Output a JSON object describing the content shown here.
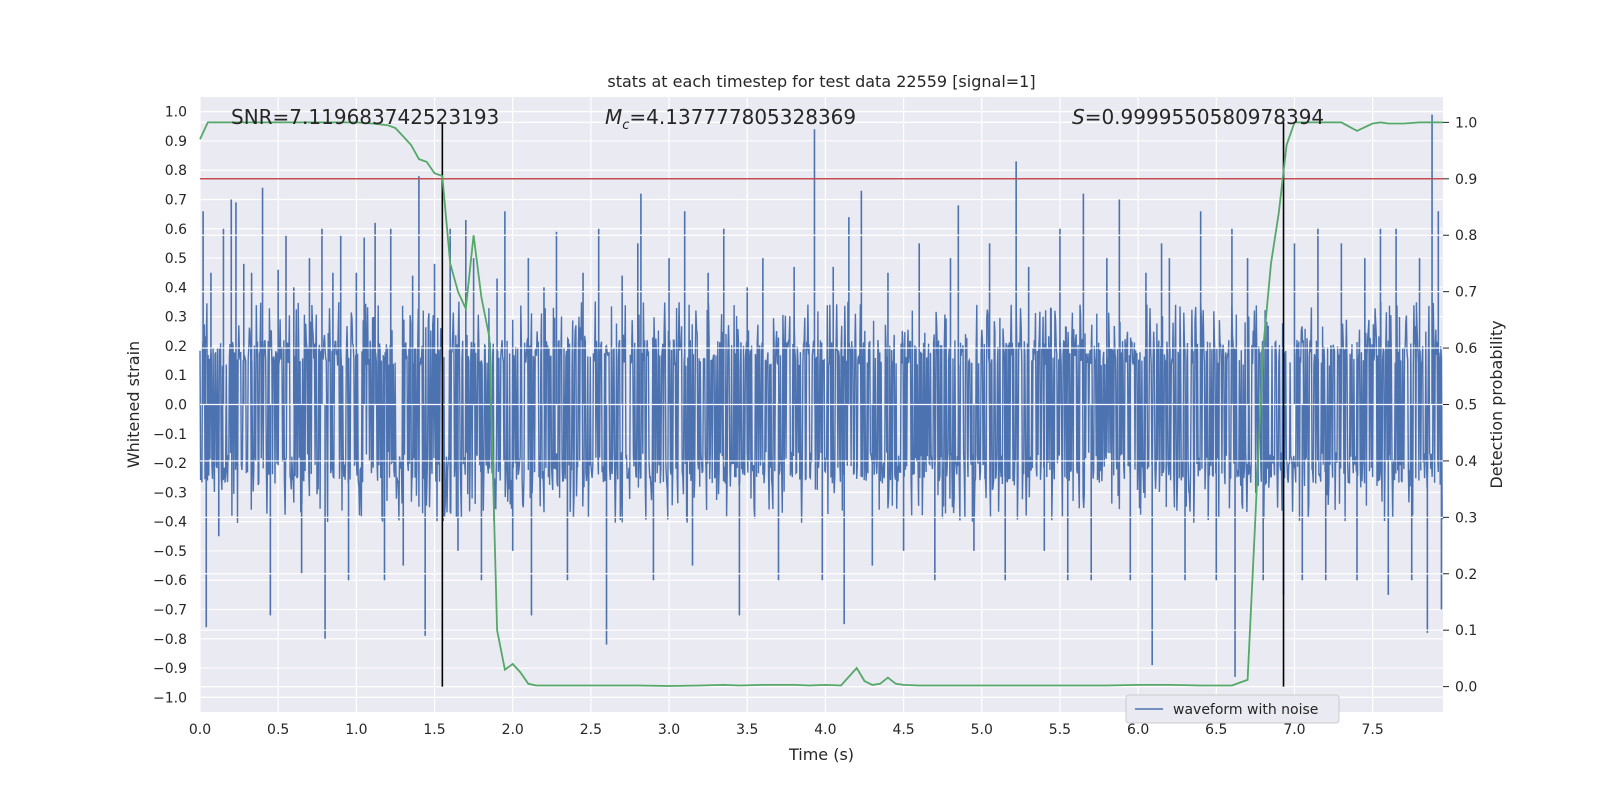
{
  "chart_data": {
    "type": "line",
    "title": "stats at each timestep for test data 22559 [signal=1]",
    "xlabel": "Time (s)",
    "ylabel_left": "Whitened strain",
    "ylabel_right": "Detection probability",
    "xlim": [
      0.0,
      7.95
    ],
    "ylim_left": [
      -1.05,
      1.05
    ],
    "ylim_right": [
      -0.045,
      1.045
    ],
    "x_ticks": [
      0.0,
      0.5,
      1.0,
      1.5,
      2.0,
      2.5,
      3.0,
      3.5,
      4.0,
      4.5,
      5.0,
      5.5,
      6.0,
      6.5,
      7.0,
      7.5
    ],
    "x_tick_labels": [
      "0.0",
      "0.5",
      "1.0",
      "1.5",
      "2.0",
      "2.5",
      "3.0",
      "3.5",
      "4.0",
      "4.5",
      "5.0",
      "5.5",
      "6.0",
      "6.5",
      "7.0",
      "7.5"
    ],
    "y_left_ticks": [
      1.0,
      0.9,
      0.8,
      0.7,
      0.6,
      0.5,
      0.4,
      0.3,
      0.2,
      0.1,
      0.0,
      -0.1,
      -0.2,
      -0.3,
      -0.4,
      -0.5,
      -0.6,
      -0.7,
      -0.8,
      -0.9,
      -1.0
    ],
    "y_left_tick_labels": [
      "1.0",
      "0.9",
      "0.8",
      "0.7",
      "0.6",
      "0.5",
      "0.4",
      "0.3",
      "0.2",
      "0.1",
      "0.0",
      "−0.1",
      "−0.2",
      "−0.3",
      "−0.4",
      "−0.5",
      "−0.6",
      "−0.7",
      "−0.8",
      "−0.9",
      "−1.0"
    ],
    "y_right_ticks": [
      1.0,
      0.9,
      0.8,
      0.7,
      0.6,
      0.5,
      0.4,
      0.3,
      0.2,
      0.1,
      0.0
    ],
    "y_right_tick_labels": [
      "1.0",
      "0.9",
      "0.8",
      "0.7",
      "0.6",
      "0.5",
      "0.4",
      "0.3",
      "0.2",
      "0.1",
      "0.0"
    ],
    "annotations": {
      "snr": "SNR=7.119683742523193",
      "mc_symbol": "M",
      "mc_sub": "c",
      "mc_value": "=4.137777805328369",
      "s_symbol": "S",
      "s_value": "=0.9999550580978394"
    },
    "threshold_right": 0.9,
    "vlines_x": [
      1.55,
      6.93
    ],
    "waveform": {
      "name": "waveform with noise",
      "dt": 0.004,
      "envelope_pos": 0.22,
      "envelope_neg": -0.27,
      "spikes": [
        [
          0.02,
          0.66
        ],
        [
          0.04,
          -0.76
        ],
        [
          0.07,
          0.45
        ],
        [
          0.12,
          -0.45
        ],
        [
          0.15,
          0.6
        ],
        [
          0.2,
          0.7
        ],
        [
          0.23,
          0.69
        ],
        [
          0.28,
          0.48
        ],
        [
          0.33,
          0.45
        ],
        [
          0.4,
          0.74
        ],
        [
          0.45,
          -0.72
        ],
        [
          0.5,
          0.46
        ],
        [
          0.55,
          0.58
        ],
        [
          0.6,
          0.4
        ],
        [
          0.65,
          -0.58
        ],
        [
          0.7,
          0.5
        ],
        [
          0.78,
          0.6
        ],
        [
          0.8,
          -0.8
        ],
        [
          0.85,
          0.45
        ],
        [
          0.9,
          0.58
        ],
        [
          0.95,
          -0.6
        ],
        [
          1.0,
          0.45
        ],
        [
          1.05,
          0.57
        ],
        [
          1.12,
          0.62
        ],
        [
          1.18,
          -0.6
        ],
        [
          1.22,
          0.6
        ],
        [
          1.3,
          -0.55
        ],
        [
          1.36,
          0.44
        ],
        [
          1.4,
          0.78
        ],
        [
          1.44,
          -0.79
        ],
        [
          1.5,
          0.48
        ],
        [
          1.6,
          0.6
        ],
        [
          1.65,
          -0.5
        ],
        [
          1.7,
          0.63
        ],
        [
          1.75,
          0.5
        ],
        [
          1.8,
          -0.6
        ],
        [
          1.9,
          0.43
        ],
        [
          1.95,
          0.66
        ],
        [
          2.0,
          -0.5
        ],
        [
          2.1,
          0.5
        ],
        [
          2.12,
          -0.72
        ],
        [
          2.2,
          0.4
        ],
        [
          2.28,
          0.59
        ],
        [
          2.35,
          -0.6
        ],
        [
          2.45,
          0.45
        ],
        [
          2.55,
          0.6
        ],
        [
          2.6,
          -0.82
        ],
        [
          2.7,
          0.44
        ],
        [
          2.8,
          0.55
        ],
        [
          2.82,
          0.72
        ],
        [
          2.9,
          -0.6
        ],
        [
          3.0,
          0.5
        ],
        [
          3.1,
          0.66
        ],
        [
          3.15,
          -0.55
        ],
        [
          3.25,
          0.45
        ],
        [
          3.35,
          0.6
        ],
        [
          3.45,
          -0.72
        ],
        [
          3.5,
          0.4
        ],
        [
          3.6,
          0.5
        ],
        [
          3.7,
          -0.6
        ],
        [
          3.8,
          0.47
        ],
        [
          3.93,
          0.94
        ],
        [
          3.98,
          -0.6
        ],
        [
          4.05,
          0.47
        ],
        [
          4.12,
          -0.75
        ],
        [
          4.15,
          0.64
        ],
        [
          4.23,
          0.73
        ],
        [
          4.3,
          -0.55
        ],
        [
          4.4,
          0.45
        ],
        [
          4.5,
          -0.5
        ],
        [
          4.6,
          0.55
        ],
        [
          4.7,
          -0.6
        ],
        [
          4.8,
          0.5
        ],
        [
          4.85,
          0.68
        ],
        [
          4.95,
          -0.5
        ],
        [
          5.05,
          0.55
        ],
        [
          5.15,
          -0.6
        ],
        [
          5.22,
          0.83
        ],
        [
          5.3,
          0.47
        ],
        [
          5.4,
          -0.5
        ],
        [
          5.5,
          0.6
        ],
        [
          5.55,
          -0.6
        ],
        [
          5.65,
          0.72
        ],
        [
          5.7,
          -0.6
        ],
        [
          5.8,
          0.5
        ],
        [
          5.88,
          0.7
        ],
        [
          5.95,
          -0.6
        ],
        [
          6.05,
          0.45
        ],
        [
          6.09,
          -0.89
        ],
        [
          6.15,
          0.55
        ],
        [
          6.2,
          0.5
        ],
        [
          6.3,
          -0.6
        ],
        [
          6.4,
          0.66
        ],
        [
          6.5,
          -0.6
        ],
        [
          6.6,
          0.6
        ],
        [
          6.62,
          -0.93
        ],
        [
          6.7,
          0.5
        ],
        [
          6.8,
          -0.6
        ],
        [
          6.93,
          -0.65
        ],
        [
          7.0,
          0.55
        ],
        [
          7.05,
          -0.6
        ],
        [
          7.15,
          0.6
        ],
        [
          7.2,
          -0.6
        ],
        [
          7.3,
          0.55
        ],
        [
          7.4,
          -0.6
        ],
        [
          7.45,
          0.5
        ],
        [
          7.55,
          0.6
        ],
        [
          7.6,
          -0.65
        ],
        [
          7.65,
          0.6
        ],
        [
          7.75,
          -0.6
        ],
        [
          7.8,
          0.5
        ],
        [
          7.85,
          -0.78
        ],
        [
          7.88,
          0.99
        ],
        [
          7.92,
          0.66
        ],
        [
          7.94,
          -0.7
        ]
      ],
      "color": "#4c72b0"
    },
    "detection_probability": {
      "color": "#55a868",
      "x": [
        0.0,
        0.05,
        0.1,
        0.2,
        0.3,
        0.4,
        0.5,
        0.6,
        0.7,
        0.8,
        0.9,
        1.0,
        1.1,
        1.2,
        1.25,
        1.3,
        1.35,
        1.4,
        1.45,
        1.5,
        1.55,
        1.6,
        1.65,
        1.7,
        1.75,
        1.8,
        1.85,
        1.9,
        1.95,
        2.0,
        2.05,
        2.1,
        2.15,
        2.2,
        2.4,
        2.6,
        2.8,
        3.0,
        3.2,
        3.35,
        3.45,
        3.6,
        3.7,
        3.8,
        3.9,
        4.0,
        4.1,
        4.2,
        4.25,
        4.3,
        4.35,
        4.4,
        4.45,
        4.5,
        4.6,
        4.8,
        5.0,
        5.2,
        5.5,
        5.8,
        6.0,
        6.2,
        6.4,
        6.6,
        6.7,
        6.75,
        6.8,
        6.85,
        6.9,
        6.95,
        7.0,
        7.05,
        7.1,
        7.2,
        7.3,
        7.4,
        7.5,
        7.55,
        7.6,
        7.7,
        7.8,
        7.9,
        7.95
      ],
      "y": [
        0.97,
        1.0,
        1.0,
        1.0,
        1.0,
        1.0,
        1.0,
        1.0,
        1.0,
        1.0,
        1.0,
        1.0,
        0.998,
        0.995,
        0.99,
        0.975,
        0.96,
        0.935,
        0.93,
        0.91,
        0.905,
        0.75,
        0.7,
        0.67,
        0.8,
        0.69,
        0.62,
        0.1,
        0.03,
        0.04,
        0.025,
        0.005,
        0.002,
        0.002,
        0.002,
        0.002,
        0.002,
        0.001,
        0.002,
        0.003,
        0.002,
        0.003,
        0.003,
        0.003,
        0.002,
        0.003,
        0.002,
        0.033,
        0.01,
        0.003,
        0.005,
        0.016,
        0.005,
        0.003,
        0.002,
        0.002,
        0.002,
        0.002,
        0.002,
        0.002,
        0.003,
        0.003,
        0.002,
        0.002,
        0.012,
        0.3,
        0.6,
        0.75,
        0.84,
        0.96,
        1.0,
        1.0,
        1.0,
        1.0,
        1.0,
        0.985,
        0.998,
        1.0,
        0.998,
        0.998,
        1.0,
        1.0,
        1.0
      ]
    },
    "grid": true,
    "legend": {
      "position": "lower-right",
      "label": "waveform with noise"
    }
  }
}
